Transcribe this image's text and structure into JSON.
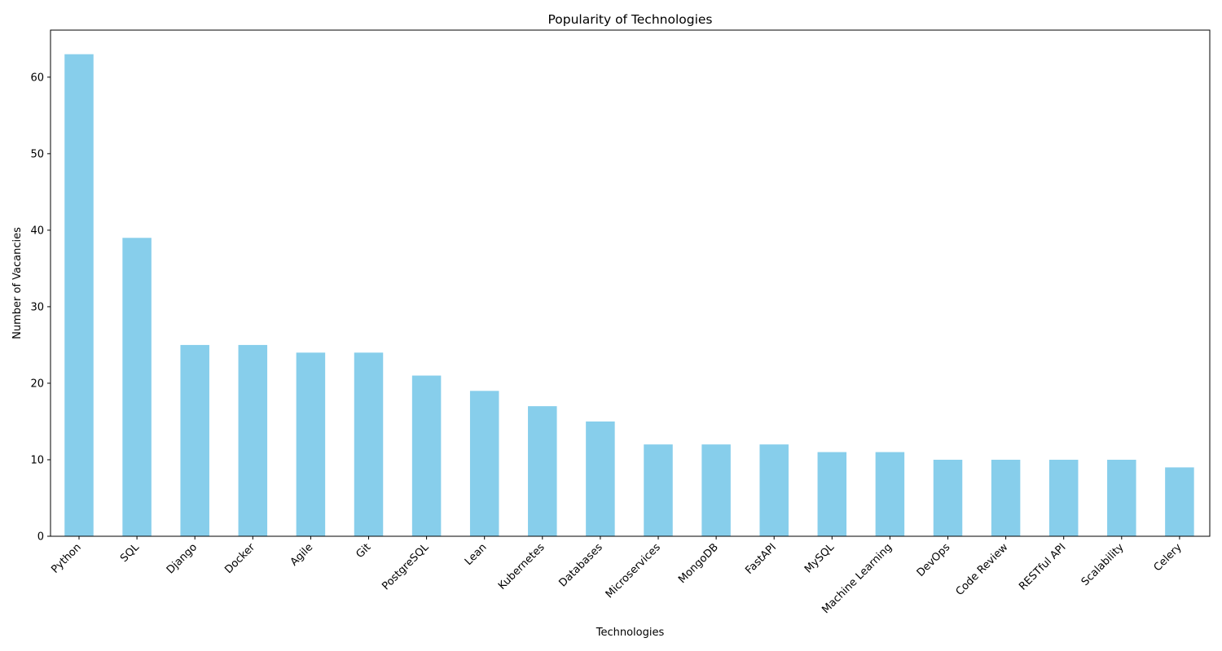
{
  "chart_data": {
    "type": "bar",
    "title": "Popularity of Technologies",
    "xlabel": "Technologies",
    "ylabel": "Number of Vacancies",
    "categories": [
      "Python",
      "SQL",
      "Django",
      "Docker",
      "Agile",
      "Git",
      "PostgreSQL",
      "Lean",
      "Kubernetes",
      "Databases",
      "Microservices",
      "MongoDB",
      "FastAPI",
      "MySQL",
      "Machine Learning",
      "DevOps",
      "Code Review",
      "RESTful API",
      "Scalability",
      "Celery"
    ],
    "values": [
      63,
      39,
      25,
      25,
      24,
      24,
      21,
      19,
      17,
      15,
      12,
      12,
      12,
      11,
      11,
      10,
      10,
      10,
      10,
      9
    ],
    "ylim": [
      0,
      66.15
    ],
    "yticks": [
      0,
      10,
      20,
      30,
      40,
      50,
      60
    ],
    "bar_color": "#87CEEB",
    "grid": false,
    "legend": "none"
  }
}
